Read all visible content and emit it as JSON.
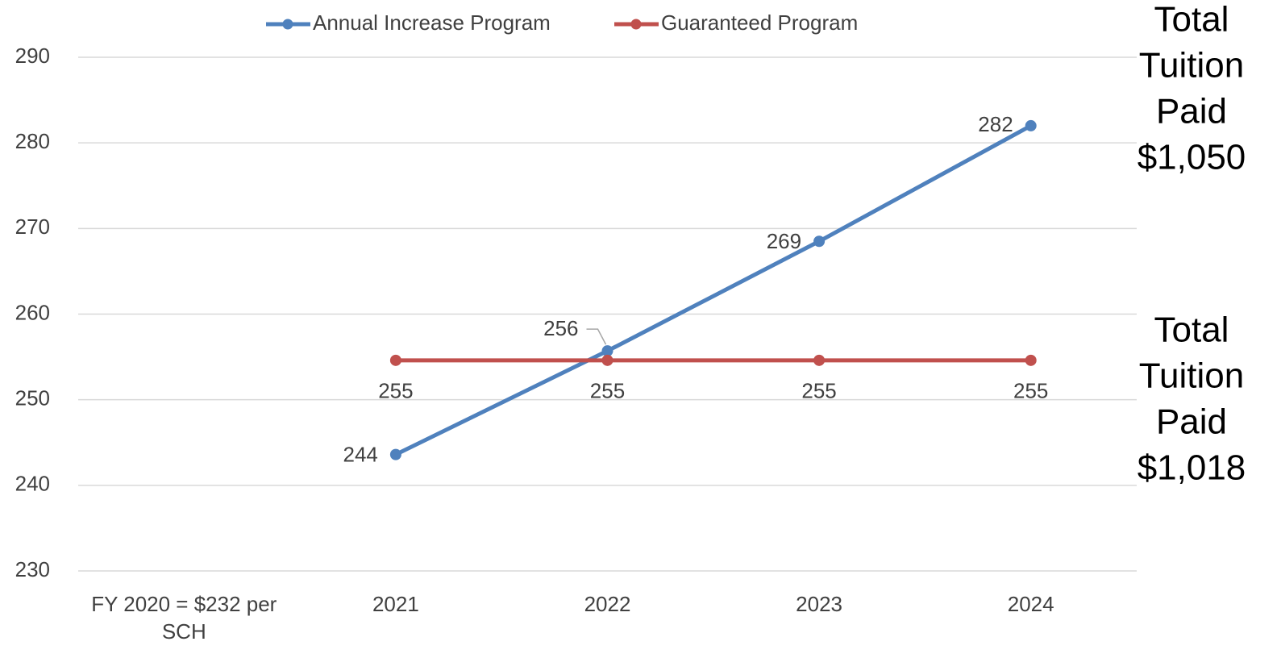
{
  "chart_data": {
    "type": "line",
    "categories": [
      "FY 2020 = $232 per SCH",
      "2021",
      "2022",
      "2023",
      "2024"
    ],
    "series": [
      {
        "name": "Annual Increase Program",
        "color": "#4f81bd",
        "values": [
          null,
          243.6,
          255.7,
          268.5,
          282
        ],
        "value_labels": [
          null,
          "244",
          "256",
          "269",
          "282"
        ]
      },
      {
        "name": "Guaranteed Program",
        "color": "#c0504d",
        "values": [
          null,
          254.6,
          254.6,
          254.6,
          254.6
        ],
        "value_labels": [
          null,
          "255",
          "255",
          "255",
          "255"
        ]
      }
    ],
    "ylim": [
      230,
      290
    ],
    "yticks": [
      230,
      240,
      250,
      260,
      270,
      280,
      290
    ],
    "grid": true,
    "legend": "top",
    "annotations": [
      {
        "lines": [
          "Total",
          "Tuition",
          "Paid",
          "$1,050"
        ]
      },
      {
        "lines": [
          "Total",
          "Tuition",
          "Paid",
          "$1,018"
        ]
      }
    ]
  }
}
